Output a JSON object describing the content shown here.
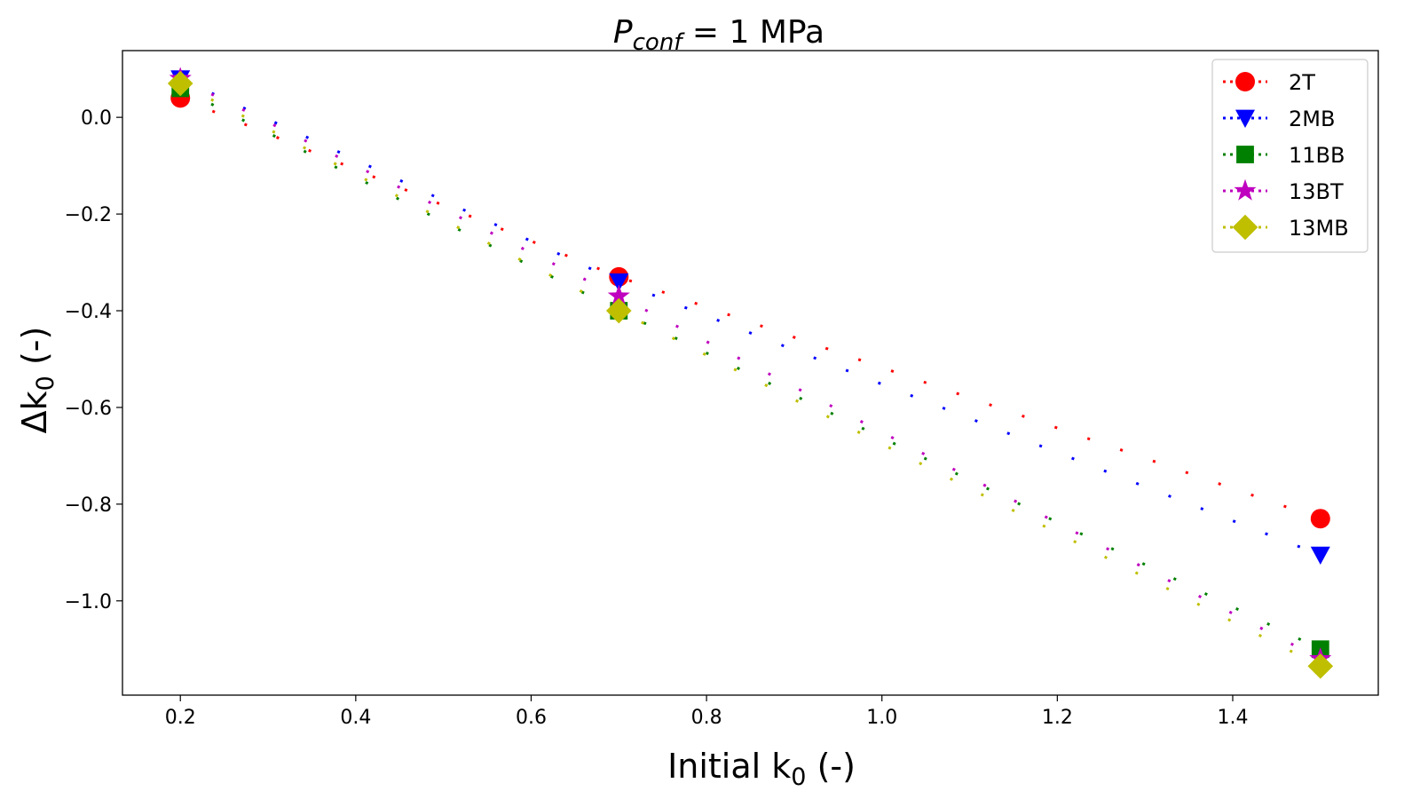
{
  "chart_data": {
    "type": "line",
    "title_main": "P",
    "title_sub": "conf",
    "title_rest": " = 1 MPa",
    "xlabel_main": "Initial k",
    "xlabel_sub": "0",
    "xlabel_rest": " (-)",
    "ylabel_main": "Δk",
    "ylabel_sub": "0",
    "ylabel_rest": " (-)",
    "xlim": [
      0.134,
      1.566
    ],
    "ylim": [
      -1.195,
      0.138
    ],
    "xticks": [
      0.2,
      0.4,
      0.6,
      0.8,
      1.0,
      1.2,
      1.4
    ],
    "xtick_labels": [
      "0.2",
      "0.4",
      "0.6",
      "0.8",
      "1.0",
      "1.2",
      "1.4"
    ],
    "yticks": [
      0.0,
      -0.2,
      -0.4,
      -0.6,
      -0.8,
      -1.0
    ],
    "ytick_labels": [
      "0.0",
      "−0.2",
      "−0.4",
      "−0.6",
      "−0.8",
      "−1.0"
    ],
    "legend_position": "top-right",
    "line_style": "dotted",
    "x": [
      0.2,
      0.7,
      1.5
    ],
    "series": [
      {
        "name": "2T",
        "values": [
          0.04,
          -0.33,
          -0.83
        ],
        "color": "#ff0000",
        "marker": "circle"
      },
      {
        "name": "2MB",
        "values": [
          0.08,
          -0.34,
          -0.905
        ],
        "color": "#0000ff",
        "marker": "triangle-down"
      },
      {
        "name": "11BB",
        "values": [
          0.06,
          -0.4,
          -1.1
        ],
        "color": "#008000",
        "marker": "square"
      },
      {
        "name": "13BT",
        "values": [
          0.08,
          -0.37,
          -1.12
        ],
        "color": "#bf00bf",
        "marker": "star"
      },
      {
        "name": "13MB",
        "values": [
          0.07,
          -0.4,
          -1.135
        ],
        "color": "#bfbf00",
        "marker": "diamond"
      }
    ]
  }
}
